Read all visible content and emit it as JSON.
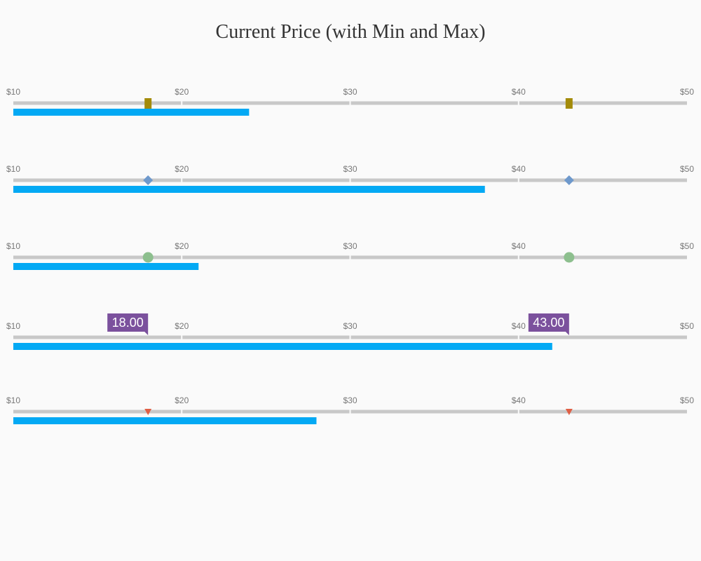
{
  "chart_data": {
    "type": "bullet",
    "title": "Current Price (with Min and Max)",
    "scale": {
      "min": 10,
      "max": 50,
      "ticks": [
        10,
        20,
        30,
        40,
        50
      ],
      "tick_labels": [
        "$10",
        "$20",
        "$30",
        "$40",
        "$50"
      ]
    },
    "colors": {
      "track": "#c8c8c8",
      "bar": "#03a9f4",
      "callout": "#7b519d",
      "callout_text": "#ffffff"
    },
    "rows": [
      {
        "value": 24,
        "marker_min": 18,
        "marker_max": 43,
        "marker_style": "square",
        "marker_color": "#a38b0a",
        "show_labels": false
      },
      {
        "value": 38,
        "marker_min": 18,
        "marker_max": 43,
        "marker_style": "diamond",
        "marker_color": "#6e99cc",
        "show_labels": false
      },
      {
        "value": 21,
        "marker_min": 18,
        "marker_max": 43,
        "marker_style": "circle",
        "marker_color": "#8dbf8e",
        "show_labels": false
      },
      {
        "value": 42,
        "marker_min": 18,
        "marker_max": 43,
        "marker_style": "none",
        "marker_color": "#7b519d",
        "show_labels": true,
        "min_label": "18.00",
        "max_label": "43.00"
      },
      {
        "value": 28,
        "marker_min": 18,
        "marker_max": 43,
        "marker_style": "triangle-down",
        "marker_color": "#e05f45",
        "show_labels": false
      }
    ]
  }
}
